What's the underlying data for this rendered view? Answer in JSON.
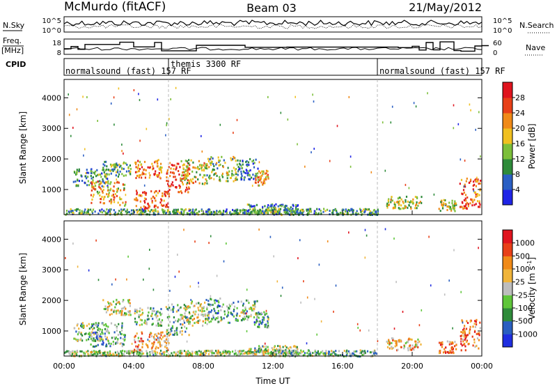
{
  "header": {
    "station": "McMurdo (fitACF)",
    "beam": "Beam 03",
    "date": "21/May/2012"
  },
  "strip": {
    "nsky_label": "N.Sky",
    "nsearch_label": "N.Search",
    "nsky_ticks": [
      "10^5",
      "10^0"
    ],
    "freq_label": "Freq.",
    "freq_unit": "[MHz]",
    "freq_ticks": [
      "18",
      "8"
    ],
    "nave_label": "Nave",
    "nave_ticks": [
      "60",
      "0"
    ],
    "cpid_label": "CPID",
    "cpid_segments": [
      {
        "label": "normalsound (fast) 157 RF"
      },
      {
        "label": "themis 3300 RF"
      },
      {
        "label": "normalsound (fast) 157 RF"
      }
    ]
  },
  "chart_data": [
    {
      "type": "heatmap",
      "name": "power",
      "ylabel": "Slant Range [km]",
      "yticks": [
        "1000",
        "2000",
        "3000",
        "4000"
      ],
      "xticks": [
        "00:00",
        "04:00",
        "08:00",
        "12:00",
        "16:00",
        "20:00",
        "00:00"
      ],
      "colorbar": {
        "label": "Power [dB]",
        "ticks": [
          "4",
          "8",
          "12",
          "16",
          "20",
          "24",
          "28"
        ],
        "colors": [
          "#1f24e6",
          "#2a5fc4",
          "#2e8b3a",
          "#7cbf3a",
          "#f0c020",
          "#f08a18",
          "#e84018",
          "#e0141e"
        ]
      },
      "blobs": [
        {
          "t": 0.4,
          "r": 300,
          "w": 24.0,
          "h": 90,
          "v": 0.3
        },
        {
          "t": 1.5,
          "r": 1400,
          "w": 2.0,
          "h": 300,
          "v": 0.25
        },
        {
          "t": 2.5,
          "r": 900,
          "w": 2.0,
          "h": 400,
          "v": 0.6
        },
        {
          "t": 3.0,
          "r": 1700,
          "w": 1.6,
          "h": 250,
          "v": 0.35
        },
        {
          "t": 4.8,
          "r": 1700,
          "w": 1.6,
          "h": 300,
          "v": 0.75
        },
        {
          "t": 5.0,
          "r": 700,
          "w": 2.0,
          "h": 300,
          "v": 0.85
        },
        {
          "t": 6.5,
          "r": 1400,
          "w": 1.4,
          "h": 500,
          "v": 0.9
        },
        {
          "t": 7.5,
          "r": 1600,
          "w": 1.6,
          "h": 400,
          "v": 0.55
        },
        {
          "t": 9.0,
          "r": 1700,
          "w": 1.8,
          "h": 400,
          "v": 0.45
        },
        {
          "t": 10.5,
          "r": 1700,
          "w": 1.2,
          "h": 350,
          "v": 0.2
        },
        {
          "t": 11.3,
          "r": 1400,
          "w": 0.8,
          "h": 250,
          "v": 0.7
        },
        {
          "t": 12.0,
          "r": 400,
          "w": 3.0,
          "h": 150,
          "v": 0.25
        },
        {
          "t": 15.0,
          "r": 300,
          "w": 6.0,
          "h": 100,
          "v": 0.3
        },
        {
          "t": 19.5,
          "r": 600,
          "w": 2.0,
          "h": 200,
          "v": 0.5
        },
        {
          "t": 22.0,
          "r": 500,
          "w": 1.0,
          "h": 200,
          "v": 0.45
        },
        {
          "t": 23.3,
          "r": 900,
          "w": 1.2,
          "h": 500,
          "v": 0.85
        }
      ]
    },
    {
      "type": "heatmap",
      "name": "velocity",
      "ylabel": "Slant Range [km]",
      "yticks": [
        "1000",
        "2000",
        "3000",
        "4000"
      ],
      "xticks": [
        "00:00",
        "04:00",
        "08:00",
        "12:00",
        "16:00",
        "20:00",
        "00:00"
      ],
      "xlabel": "Time UT",
      "colorbar": {
        "label": "Velocity [m s",
        "label_sup": "-1",
        "label_end": "]",
        "ticks": [
          "1000",
          "500",
          "100",
          "25",
          "-25",
          "-100",
          "-500",
          "-1000"
        ],
        "colors": [
          "#1f2ee0",
          "#2a5fc0",
          "#2e8b3a",
          "#5fc63a",
          "#bdbdbd",
          "#f0b43a",
          "#f08a18",
          "#e84018",
          "#e0141e"
        ]
      },
      "blobs": [
        {
          "t": 0.4,
          "r": 300,
          "w": 24.0,
          "h": 90,
          "v": 0.45
        },
        {
          "t": 1.5,
          "r": 1000,
          "w": 2.0,
          "h": 300,
          "v": 0.4
        },
        {
          "t": 2.5,
          "r": 900,
          "w": 2.0,
          "h": 400,
          "v": 0.3
        },
        {
          "t": 3.0,
          "r": 1800,
          "w": 1.6,
          "h": 250,
          "v": 0.55
        },
        {
          "t": 4.8,
          "r": 1500,
          "w": 1.6,
          "h": 300,
          "v": 0.4
        },
        {
          "t": 5.0,
          "r": 700,
          "w": 2.0,
          "h": 300,
          "v": 0.7
        },
        {
          "t": 6.5,
          "r": 1400,
          "w": 1.4,
          "h": 500,
          "v": 0.35
        },
        {
          "t": 7.5,
          "r": 1600,
          "w": 1.6,
          "h": 400,
          "v": 0.5
        },
        {
          "t": 9.0,
          "r": 1700,
          "w": 1.8,
          "h": 400,
          "v": 0.3
        },
        {
          "t": 10.5,
          "r": 1700,
          "w": 1.2,
          "h": 350,
          "v": 0.4
        },
        {
          "t": 11.3,
          "r": 1400,
          "w": 0.8,
          "h": 250,
          "v": 0.3
        },
        {
          "t": 12.0,
          "r": 400,
          "w": 3.0,
          "h": 150,
          "v": 0.45
        },
        {
          "t": 15.0,
          "r": 300,
          "w": 6.0,
          "h": 100,
          "v": 0.35
        },
        {
          "t": 19.5,
          "r": 600,
          "w": 2.0,
          "h": 200,
          "v": 0.65
        },
        {
          "t": 22.0,
          "r": 500,
          "w": 1.0,
          "h": 200,
          "v": 0.8
        },
        {
          "t": 23.3,
          "r": 900,
          "w": 1.2,
          "h": 500,
          "v": 0.75
        }
      ]
    }
  ]
}
